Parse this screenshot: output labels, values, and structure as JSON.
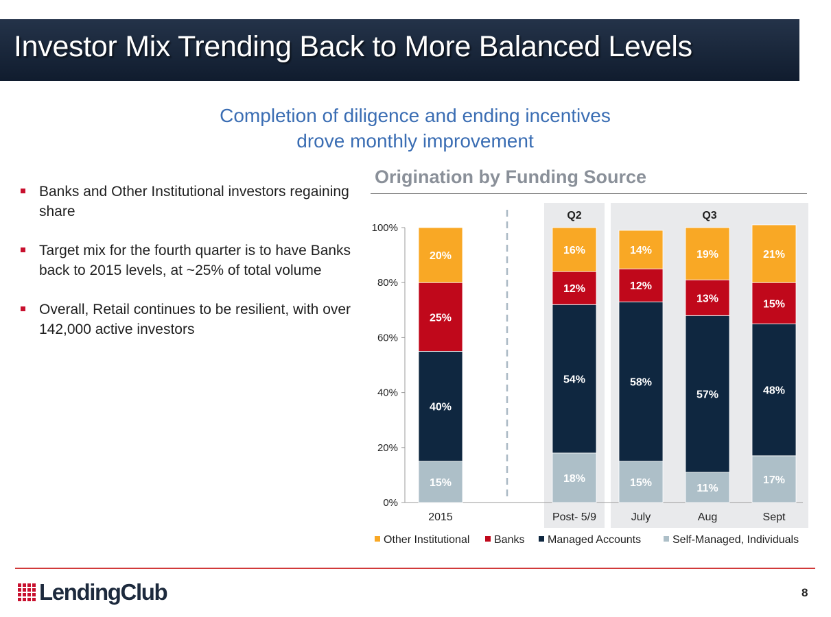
{
  "slide": {
    "title": "Investor Mix Trending Back to More Balanced Levels",
    "subtitle_line1": "Completion of diligence and ending incentives",
    "subtitle_line2": "drove monthly improvement",
    "bullets": [
      "Banks and Other Institutional investors regaining share",
      "Target mix for the fourth quarter is to have Banks back to 2015 levels, at ~25% of total volume",
      "Overall, Retail continues to be resilient, with over 142,000 active investors"
    ],
    "logo_text": "LendingClub",
    "page_number": "8"
  },
  "chart_data": {
    "type": "bar",
    "stacked": true,
    "title": "Origination by Funding Source",
    "categories": [
      "2015",
      "Post- 5/9",
      "July",
      "Aug",
      "Sept"
    ],
    "groups": [
      {
        "label": "Q2",
        "categories": [
          "Post- 5/9"
        ]
      },
      {
        "label": "Q3",
        "categories": [
          "July",
          "Aug",
          "Sept"
        ]
      }
    ],
    "series": [
      {
        "name": "Self-Managed, Individuals",
        "color": "#adbfc8",
        "values": [
          15,
          18,
          15,
          11,
          17
        ],
        "labels": [
          "15%",
          "18%",
          "15%",
          "11%",
          "17%"
        ]
      },
      {
        "name": "Managed Accounts",
        "color": "#0f2740",
        "values": [
          40,
          54,
          58,
          57,
          48
        ],
        "labels": [
          "40%",
          "54%",
          "58%",
          "57%",
          "48%"
        ]
      },
      {
        "name": "Banks",
        "color": "#c0081b",
        "values": [
          25,
          12,
          12,
          13,
          15
        ],
        "labels": [
          "25%",
          "12%",
          "12%",
          "13%",
          "15%"
        ]
      },
      {
        "name": "Other Institutional",
        "color": "#f9a825",
        "values": [
          20,
          16,
          14,
          19,
          21
        ],
        "labels": [
          "20%",
          "16%",
          "14%",
          "19%",
          "21%"
        ]
      }
    ],
    "legend_order": [
      "Other Institutional",
      "Banks",
      "Managed Accounts",
      "Self-Managed, Individuals"
    ],
    "y_ticks": [
      "0%",
      "20%",
      "40%",
      "60%",
      "80%",
      "100%"
    ],
    "ylim": [
      0,
      100
    ],
    "legend_position": "bottom",
    "grid": false
  }
}
